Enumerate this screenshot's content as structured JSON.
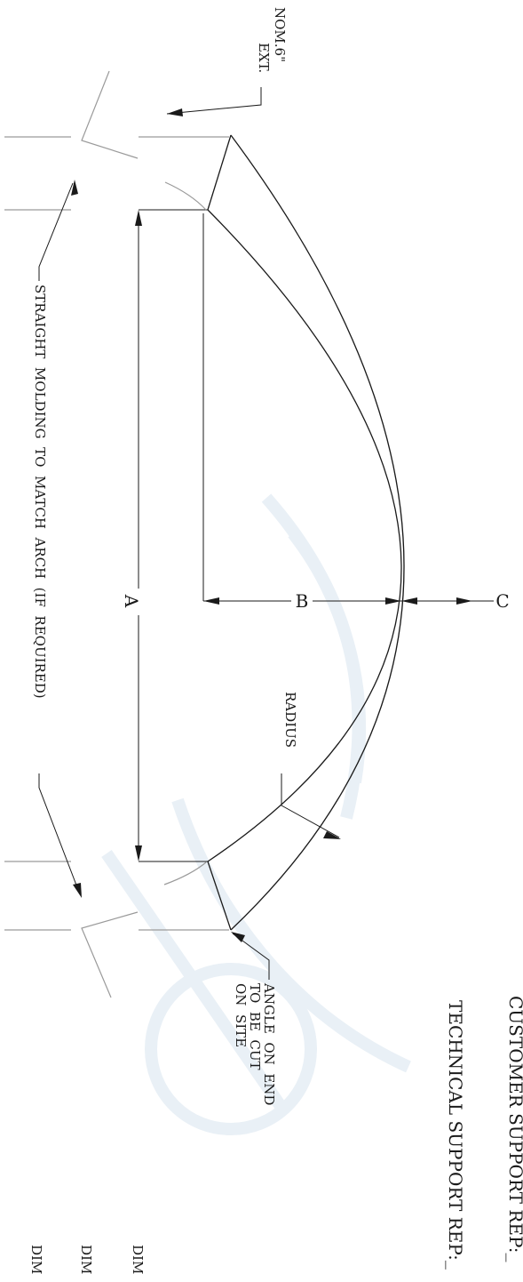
{
  "labels": {
    "ext_line1": "NOM.6\"",
    "ext_line2": "EXT.",
    "straight_molding": "STRAIGHT  MOLDING  TO  MATCH  ARCH  (IF  REQUIRED)",
    "dim_a": "A",
    "dim_b": "B",
    "dim_c": "C",
    "radius": "RADIUS",
    "angle_line1": "ANGLE  ON  END",
    "angle_line2": "TO  BE  CUT",
    "angle_line3": "ON  SITE",
    "customer_support": "CUSTOMER SUPPORT REP:_",
    "technical_support": "TECHNICAL SUPPORT REP:_",
    "dim_fragment_1": "DIM",
    "dim_fragment_2": "DIM",
    "dim_fragment_3": "DIM"
  }
}
